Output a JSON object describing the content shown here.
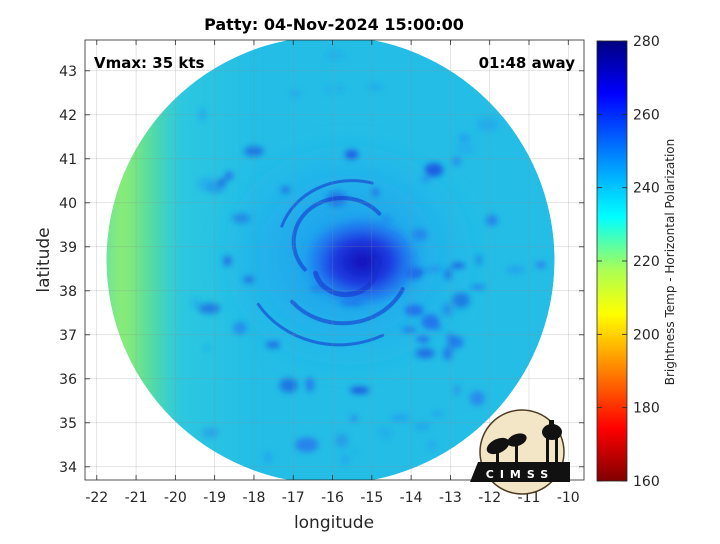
{
  "chart_data": {
    "type": "heatmap",
    "title": "Patty: 04-Nov-2024 15:00:00",
    "xlabel": "longitude",
    "ylabel": "latitude",
    "xlim": [
      -22.3,
      -9.6
    ],
    "ylim": [
      33.7,
      43.7
    ],
    "xticks": [
      -22,
      -21,
      -20,
      -19,
      -18,
      -17,
      -16,
      -15,
      -14,
      -13,
      -12,
      -11,
      -10
    ],
    "yticks": [
      34,
      35,
      36,
      37,
      38,
      39,
      40,
      41,
      42,
      43
    ],
    "grid": true,
    "annotations": {
      "vmax": "Vmax: 35 kts",
      "time_away": "01:48 away"
    },
    "colorbar": {
      "label": "Brightness Temp - Horizontal Polarization",
      "ticks": [
        160,
        180,
        200,
        220,
        240,
        260,
        280
      ],
      "range": [
        160,
        280
      ],
      "colormap": "jet-reversed",
      "colors_high_to_low": [
        "#000080",
        "#0000ff",
        "#00aaff",
        "#00ffff",
        "#aaff55",
        "#ffff00",
        "#ff8000",
        "#ff0000",
        "#800000"
      ]
    },
    "storm_center": {
      "lon": -15.6,
      "lat": 38.8
    },
    "swath_center": {
      "lon": -16.05,
      "lat": 38.7
    },
    "swath_radius_deg": 5.7,
    "field_estimates": [
      {
        "region": "storm core",
        "lon": -15.3,
        "lat": 38.8,
        "value": 262
      },
      {
        "region": "spiral band",
        "lon": -15.0,
        "lat": 37.8,
        "value": 255
      },
      {
        "region": "background ocean",
        "lon": -14.0,
        "lat": 36.0,
        "value": 240
      },
      {
        "region": "western dry band",
        "lon": -20.5,
        "lat": 38.8,
        "value": 224
      }
    ],
    "logo_text": "CIMSS"
  }
}
